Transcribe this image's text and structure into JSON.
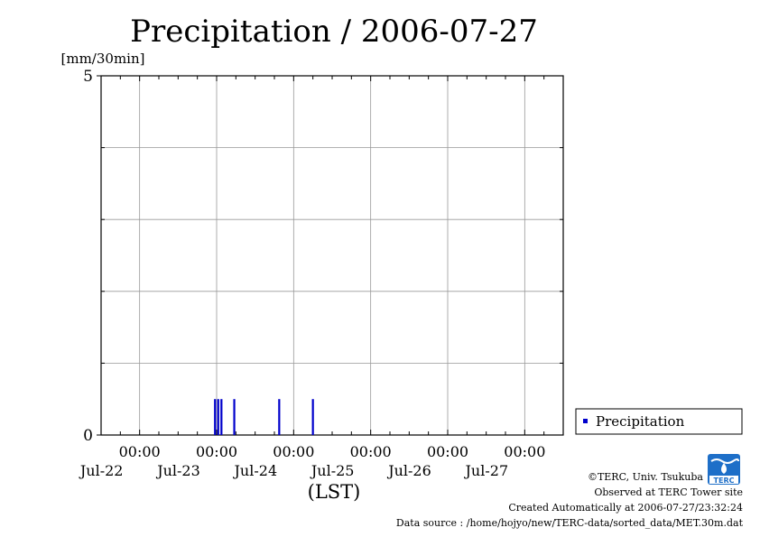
{
  "chart_data": {
    "type": "bar",
    "title": "Precipitation / 2006-07-27",
    "ylabel": "[mm/30min]",
    "xlabel": "(LST)",
    "ylim": [
      0,
      5
    ],
    "yticks": [
      "0",
      "5"
    ],
    "xlim": [
      "2006-07-21T12:00",
      "2006-07-27T12:00"
    ],
    "xticks": [
      {
        "time": "00:00",
        "date": "Jul-22"
      },
      {
        "time": "00:00",
        "date": "Jul-23"
      },
      {
        "time": "00:00",
        "date": "Jul-24"
      },
      {
        "time": "00:00",
        "date": "Jul-25"
      },
      {
        "time": "00:00",
        "date": "Jul-26"
      },
      {
        "time": "00:00",
        "date": "Jul-27"
      }
    ],
    "grid": true,
    "legend": {
      "position": "right",
      "entries": [
        "Precipitation"
      ]
    },
    "series": [
      {
        "name": "Precipitation",
        "color": "#0000cc",
        "points": [
          {
            "x": "2006-07-22T23:30",
            "y": 0.5
          },
          {
            "x": "2006-07-23T00:30",
            "y": 0.5
          },
          {
            "x": "2006-07-23T01:30",
            "y": 0.5
          },
          {
            "x": "2006-07-23T05:30",
            "y": 0.5
          },
          {
            "x": "2006-07-23T19:30",
            "y": 0.5
          },
          {
            "x": "2006-07-24T06:00",
            "y": 0.5
          }
        ]
      }
    ]
  },
  "footer": {
    "copyright": "©TERC, Univ. Tsukuba",
    "site": "Observed at TERC Tower site",
    "created": "Created Automatically at 2006-07-27/23:32:24",
    "source": "Data source : /home/hojyo/new/TERC-data/sorted_data/MET.30m.dat",
    "logo_text": "TERC"
  }
}
